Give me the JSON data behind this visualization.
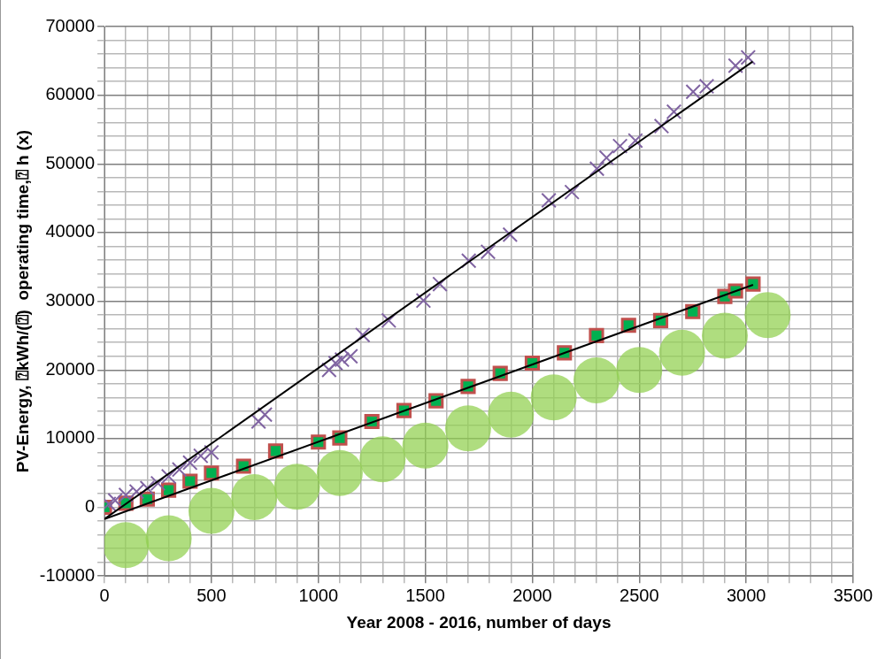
{
  "chart_data": {
    "type": "scatter",
    "xlabel": "Year 2008 - 2016, number of days",
    "ylabel": "PV-Energy, ⍰kWh/(⍰)  operating time,⍰ h (x)",
    "xlim": [
      0,
      3500
    ],
    "xticks": [
      0,
      {
        "value": 100,
        "label": null
      },
      {
        "value": 200,
        "label": null
      },
      {
        "value": 300,
        "label": null
      },
      {
        "value": 400,
        "label": null
      },
      500,
      {
        "value": 600,
        "label": null
      },
      {
        "value": 700,
        "label": null
      },
      {
        "value": 800,
        "label": null
      },
      {
        "value": 900,
        "label": null
      },
      1000,
      {
        "value": 1100,
        "label": null
      },
      {
        "value": 1200,
        "label": null
      },
      {
        "value": 1300,
        "label": null
      },
      {
        "value": 1400,
        "label": null
      },
      1500,
      {
        "value": 1600,
        "label": null
      },
      {
        "value": 1700,
        "label": null
      },
      {
        "value": 1800,
        "label": null
      },
      {
        "value": 1900,
        "label": null
      },
      2000,
      {
        "value": 2100,
        "label": null
      },
      {
        "value": 2200,
        "label": null
      },
      {
        "value": 2300,
        "label": null
      },
      {
        "value": 2400,
        "label": null
      },
      2500,
      {
        "value": 2600,
        "label": null
      },
      {
        "value": 2700,
        "label": null
      },
      {
        "value": 2800,
        "label": null
      },
      {
        "value": 2900,
        "label": null
      },
      3000,
      {
        "value": 3100,
        "label": null
      },
      {
        "value": 3200,
        "label": null
      },
      {
        "value": 3300,
        "label": null
      },
      {
        "value": 3400,
        "label": null
      },
      3500
    ],
    "ylim": [
      -10000,
      70000
    ],
    "yticks": [
      -10000,
      {
        "value": -8000,
        "label": null
      },
      {
        "value": -6000,
        "label": null
      },
      {
        "value": -4000,
        "label": null
      },
      {
        "value": -2000,
        "label": null
      },
      0,
      {
        "value": 2000,
        "label": null
      },
      {
        "value": 4000,
        "label": null
      },
      {
        "value": 6000,
        "label": null
      },
      {
        "value": 8000,
        "label": null
      },
      10000,
      {
        "value": 12000,
        "label": null
      },
      {
        "value": 14000,
        "label": null
      },
      {
        "value": 16000,
        "label": null
      },
      {
        "value": 18000,
        "label": null
      },
      20000,
      {
        "value": 22000,
        "label": null
      },
      {
        "value": 24000,
        "label": null
      },
      {
        "value": 26000,
        "label": null
      },
      {
        "value": 28000,
        "label": null
      },
      30000,
      {
        "value": 32000,
        "label": null
      },
      {
        "value": 34000,
        "label": null
      },
      {
        "value": 36000,
        "label": null
      },
      {
        "value": 38000,
        "label": null
      },
      40000,
      {
        "value": 42000,
        "label": null
      },
      {
        "value": 44000,
        "label": null
      },
      {
        "value": 46000,
        "label": null
      },
      {
        "value": 48000,
        "label": null
      },
      50000,
      {
        "value": 52000,
        "label": null
      },
      {
        "value": 54000,
        "label": null
      },
      {
        "value": 56000,
        "label": null
      },
      {
        "value": 58000,
        "label": null
      },
      60000,
      {
        "value": 62000,
        "label": null
      },
      {
        "value": 64000,
        "label": null
      },
      {
        "value": 66000,
        "label": null
      },
      {
        "value": 68000,
        "label": null
      },
      70000
    ],
    "grid": true,
    "legend": false,
    "series": [
      {
        "marker": "circle",
        "color": "#92d050",
        "x": [
          100,
          300,
          500,
          700,
          900,
          1100,
          1300,
          1500,
          1700,
          1900,
          2100,
          2300,
          2500,
          2700,
          2900,
          3100
        ],
        "values": [
          -5500,
          -4500,
          -500,
          1500,
          3000,
          5000,
          7000,
          9000,
          11500,
          13500,
          16000,
          18500,
          20000,
          22500,
          25000,
          28000
        ]
      },
      {
        "marker": "square",
        "color": "#c0504d",
        "x": [
          0,
          100,
          200,
          300,
          400,
          500,
          650,
          800,
          1000,
          1100,
          1250,
          1400,
          1550,
          1700,
          1850,
          2000,
          2150,
          2300,
          2450,
          2600,
          2750,
          2900,
          2950,
          3032
        ],
        "values": [
          0,
          600,
          1200,
          2500,
          3800,
          5000,
          6000,
          8200,
          9500,
          10100,
          12500,
          14100,
          15500,
          17600,
          19500,
          21000,
          22500,
          25000,
          26500,
          27200,
          28500,
          30700,
          31500,
          32500
        ]
      },
      {
        "marker": "cross",
        "color": "#8064a2",
        "x": [
          20,
          50,
          100,
          150,
          200,
          250,
          300,
          350,
          400,
          450,
          500,
          720,
          750,
          1050,
          1080,
          1110,
          1150,
          1207,
          1329,
          1491,
          1568,
          1703,
          1793,
          1896,
          2077,
          2185,
          2302,
          2347,
          2410,
          2482,
          2604,
          2662,
          2752,
          2815,
          2950,
          3009
        ],
        "values": [
          500,
          1000,
          1800,
          2300,
          2800,
          3500,
          4500,
          5500,
          6500,
          7500,
          8000,
          12500,
          13500,
          20000,
          21000,
          21500,
          22000,
          25100,
          27200,
          30100,
          32500,
          35900,
          37200,
          39700,
          44700,
          45900,
          49300,
          50900,
          52600,
          53400,
          55500,
          57600,
          60500,
          61300,
          64300,
          65500
        ]
      },
      {
        "type": "line",
        "marker": "none",
        "color": "#000000",
        "x": [
          0,
          3030
        ],
        "values": [
          -1700,
          64900
        ]
      },
      {
        "type": "line",
        "marker": "none",
        "color": "#000000",
        "x": [
          0,
          3032
        ],
        "values": [
          -1700,
          32400
        ]
      }
    ]
  }
}
